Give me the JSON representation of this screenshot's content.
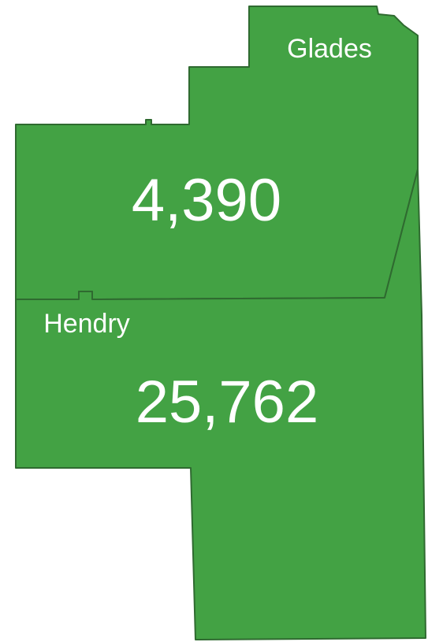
{
  "regions": [
    {
      "name": "Glades",
      "value": "4,390"
    },
    {
      "name": "Hendry",
      "value": "25,762"
    }
  ]
}
